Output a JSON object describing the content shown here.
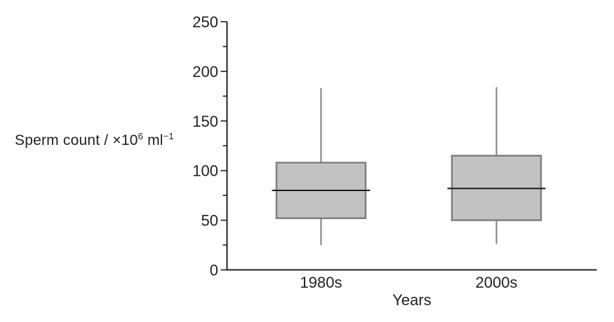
{
  "chart_data": {
    "type": "boxplot",
    "title": "",
    "x_axis": {
      "label": "Years",
      "categories": [
        "1980s",
        "2000s"
      ]
    },
    "y_axis": {
      "label": "Sperm count / ×10⁶ ml⁻¹",
      "label_parts": {
        "part1": "Sperm count / ×10",
        "sup1": "6",
        "part2": " ml",
        "sup2": "−1"
      },
      "min": 0,
      "max": 250,
      "major_ticks": [
        0,
        50,
        100,
        150,
        200,
        250
      ],
      "minor_ticks": [
        25,
        75,
        125,
        175,
        225
      ]
    },
    "series": [
      {
        "category": "1980s",
        "whisker_low": 25,
        "q1": 52,
        "median": 80,
        "q3": 108,
        "whisker_high": 183
      },
      {
        "category": "2000s",
        "whisker_low": 26,
        "q1": 50,
        "median": 82,
        "q3": 115,
        "whisker_high": 184
      }
    ],
    "legend": null,
    "grid": false,
    "colors": {
      "box_fill": "#c2c2c2",
      "box_border": "#7f7f7f",
      "whisker": "#7f7f7f",
      "median": "#1a1a1a",
      "axis": "#231f20",
      "text": "#231f20",
      "background": "#ffffff"
    }
  }
}
